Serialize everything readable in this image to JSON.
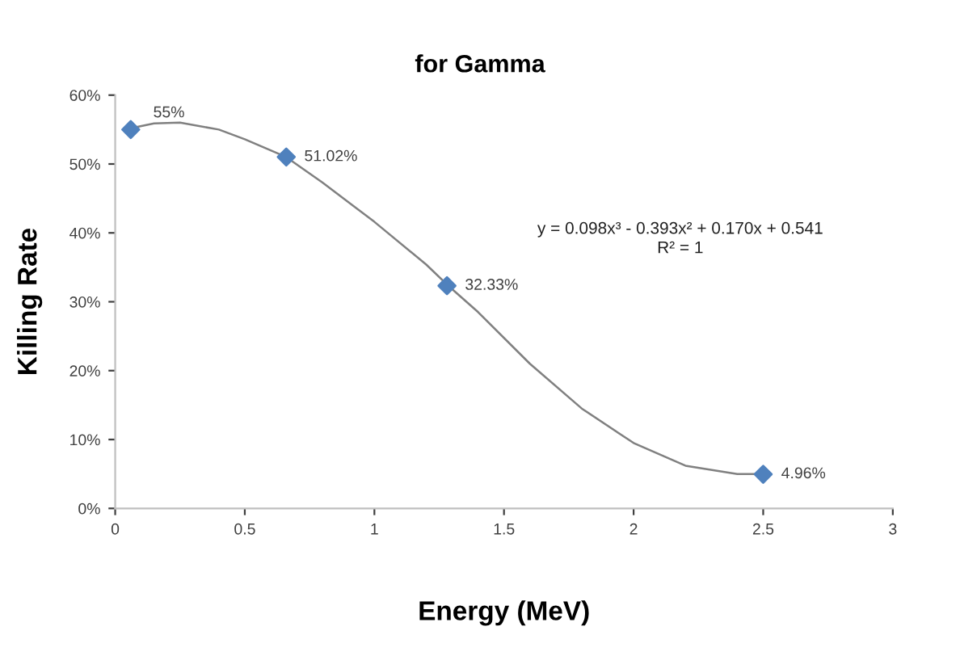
{
  "chart_data": {
    "type": "scatter",
    "title": "for Gamma",
    "xlabel": "Energy (MeV)",
    "ylabel": "Killing Rate",
    "xlim": [
      0,
      3
    ],
    "xticks": [
      0,
      0.5,
      1,
      1.5,
      2,
      2.5,
      3
    ],
    "ylim": [
      0,
      60
    ],
    "yticks": [
      {
        "value": 0,
        "label": "0%"
      },
      {
        "value": 10,
        "label": "10%"
      },
      {
        "value": 20,
        "label": "20%"
      },
      {
        "value": 30,
        "label": "30%"
      },
      {
        "value": 40,
        "label": "40%"
      },
      {
        "value": 50,
        "label": "50%"
      },
      {
        "value": 60,
        "label": "60%"
      }
    ],
    "grid": false,
    "legend": false,
    "series": [
      {
        "type": "line",
        "color": "#808080",
        "marker": "none",
        "line_style": "solid",
        "x": [
          0.06,
          0.15,
          0.25,
          0.4,
          0.5,
          0.66,
          0.8,
          1.0,
          1.2,
          1.28,
          1.4,
          1.6,
          1.8,
          2.0,
          2.2,
          2.4,
          2.5
        ],
        "values": [
          55.2,
          55.9,
          56.0,
          55.0,
          53.6,
          51.0,
          47.3,
          41.6,
          35.4,
          32.5,
          28.5,
          21.0,
          14.5,
          9.5,
          6.2,
          5.0,
          5.0
        ]
      },
      {
        "color": "#4f81bd",
        "marker": "diamond",
        "x": [
          0.06,
          0.66,
          1.28,
          2.5
        ],
        "values": [
          55,
          51.02,
          32.33,
          4.96
        ],
        "value_labels": [
          "55%",
          "51.02%",
          "32.33%",
          "4.96%"
        ]
      }
    ],
    "annotations": [
      "y = 0.098x³ - 0.393x² + 0.170x + 0.541",
      "R² = 1"
    ]
  }
}
